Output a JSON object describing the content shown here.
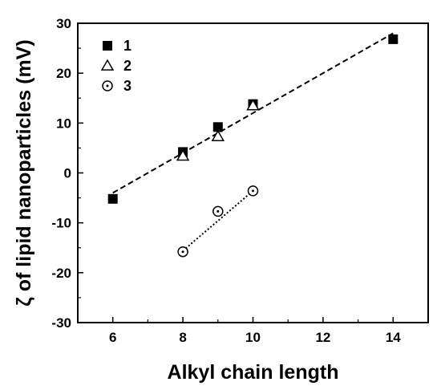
{
  "chart_data": {
    "type": "scatter",
    "xlabel": "Alkyl chain length",
    "ylabel": "ζ of lipid nanoparticles (mV)",
    "xlim": [
      5,
      15
    ],
    "ylim": [
      -30,
      30
    ],
    "xticks": [
      6,
      8,
      10,
      12,
      14
    ],
    "yticks": [
      -30,
      -20,
      -10,
      0,
      10,
      20,
      30
    ],
    "grid": false,
    "legend": "top-left",
    "series": [
      {
        "name": "1",
        "marker": "filled-square",
        "x": [
          6,
          8,
          9,
          10,
          14
        ],
        "y": [
          -5.2,
          4.2,
          9.2,
          13.8,
          26.8
        ]
      },
      {
        "name": "2",
        "marker": "open-triangle",
        "x": [
          8,
          9,
          10
        ],
        "y": [
          3.4,
          7.3,
          13.5
        ]
      },
      {
        "name": "3",
        "marker": "dotted-circle",
        "x": [
          8,
          9,
          10
        ],
        "y": [
          -15.8,
          -7.7,
          -3.6
        ]
      }
    ],
    "fit_lines": [
      {
        "series": "1",
        "style": "dashed",
        "x": [
          6,
          14
        ],
        "y": [
          -4.0,
          28.0
        ]
      },
      {
        "series": "3",
        "style": "dotted",
        "x": [
          8,
          10
        ],
        "y": [
          -15.6,
          -3.6
        ]
      }
    ]
  }
}
